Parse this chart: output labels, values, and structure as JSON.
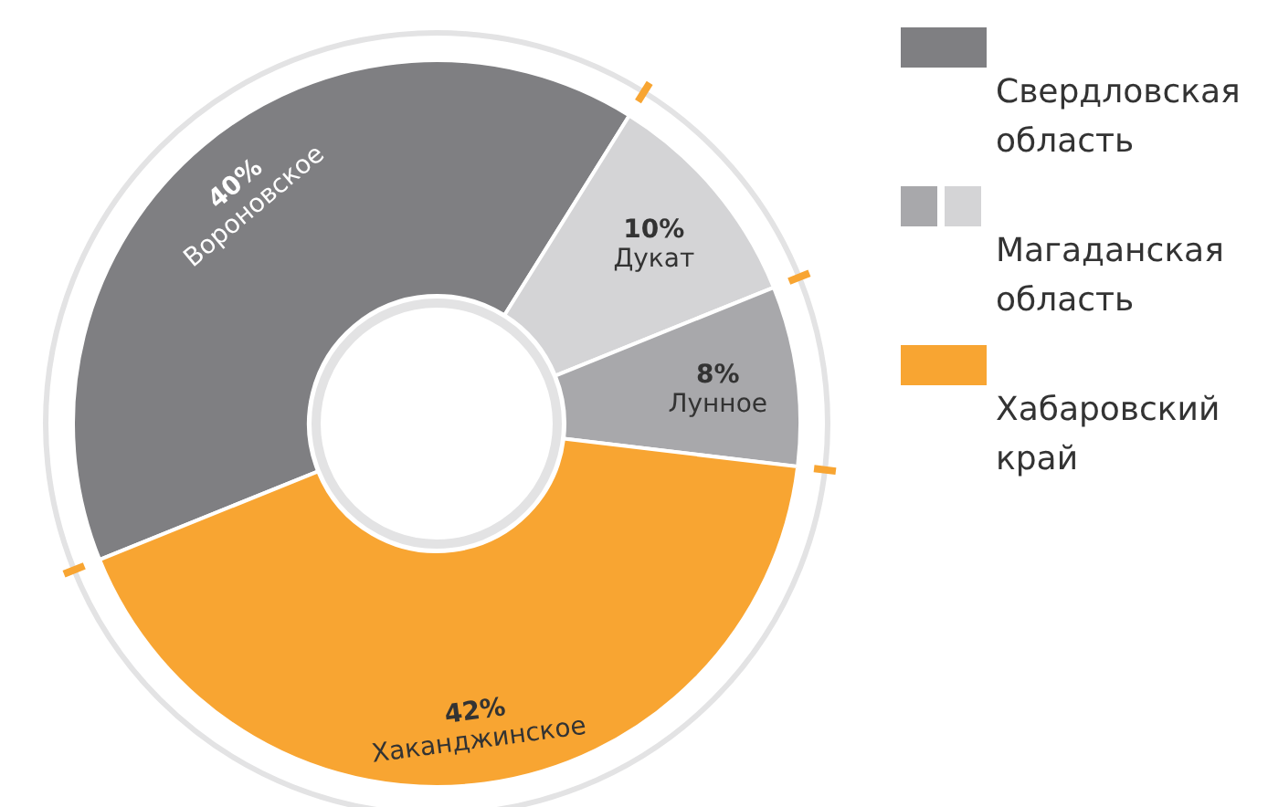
{
  "chart_data": {
    "type": "donut",
    "categories": [
      "Вороновское",
      "Дукат",
      "Лунное",
      "Хаканджинское"
    ],
    "values": [
      40,
      10,
      8,
      42
    ],
    "colors": [
      "#7f7f82",
      "#d4d4d6",
      "#a8a8ab",
      "#f8a532"
    ],
    "value_labels": [
      "40%",
      "10%",
      "8%",
      "42%"
    ],
    "annotations": [
      "Свердловская область",
      "Магаданская область",
      "Хабаровский край"
    ]
  }
}
